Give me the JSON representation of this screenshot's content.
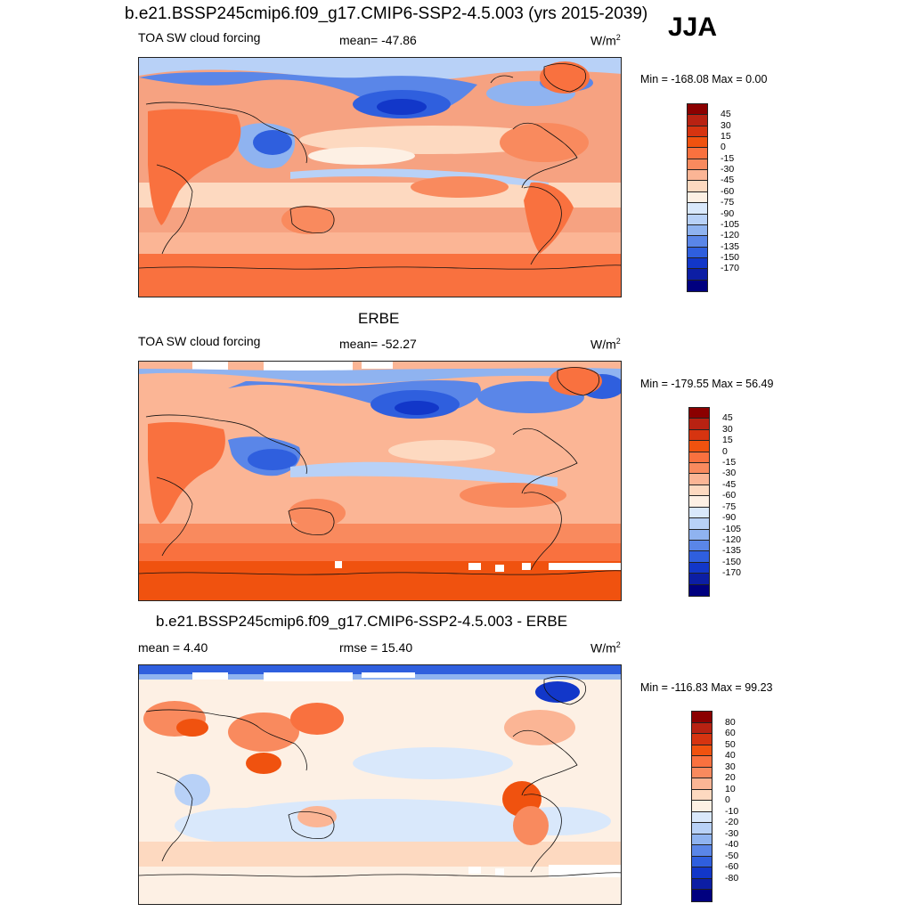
{
  "figure": {
    "main_title": "b.e21.BSSP245cmip6.f09_g17.CMIP6-SSP2-4.5.003 (yrs 2015-2039)",
    "season": "JJA"
  },
  "panels": [
    {
      "id": "model",
      "title": "",
      "left_label": "TOA SW cloud forcing",
      "center_label": "mean= -47.86",
      "units": "W/m",
      "units_sup": "2",
      "minmax": "Min = -168.08 Max =   0.00",
      "colorbar_labels": [
        "45",
        "30",
        "15",
        "0",
        "-15",
        "-30",
        "-45",
        "-60",
        "-75",
        "-90",
        "-105",
        "-120",
        "-135",
        "-150",
        "-170"
      ],
      "colors": [
        "#8b0000",
        "#b82212",
        "#d63410",
        "#f0520f",
        "#f9713f",
        "#f98a5e",
        "#fbb595",
        "#fdd9c0",
        "#fdf0e4",
        "#d9e8fb",
        "#b8d1f7",
        "#8fb3f0",
        "#5a86e8",
        "#2f5fde",
        "#1237c9",
        "#0c1ea4",
        "#00007f"
      ]
    },
    {
      "id": "obs",
      "title": "ERBE",
      "left_label": "TOA SW cloud forcing",
      "center_label": "mean= -52.27",
      "units": "W/m",
      "units_sup": "2",
      "minmax": "Min = -179.55 Max =  56.49",
      "colorbar_labels": [
        "45",
        "30",
        "15",
        "0",
        "-15",
        "-30",
        "-45",
        "-60",
        "-75",
        "-90",
        "-105",
        "-120",
        "-135",
        "-150",
        "-170"
      ],
      "colors": [
        "#8b0000",
        "#b82212",
        "#d63410",
        "#f0520f",
        "#f9713f",
        "#f98a5e",
        "#fbb595",
        "#fdd9c0",
        "#fdf0e4",
        "#d9e8fb",
        "#b8d1f7",
        "#8fb3f0",
        "#5a86e8",
        "#2f5fde",
        "#1237c9",
        "#0c1ea4",
        "#00007f"
      ]
    },
    {
      "id": "diff",
      "title": "b.e21.BSSP245cmip6.f09_g17.CMIP6-SSP2-4.5.003 - ERBE",
      "left_label": "mean =   4.40",
      "center_label": "rmse =  15.40",
      "units": "W/m",
      "units_sup": "2",
      "minmax": "Min = -116.83 Max =  99.23",
      "colorbar_labels": [
        "80",
        "60",
        "50",
        "40",
        "30",
        "20",
        "10",
        "0",
        "-10",
        "-20",
        "-30",
        "-40",
        "-50",
        "-60",
        "-80"
      ],
      "colors": [
        "#8b0000",
        "#b82212",
        "#d63410",
        "#f0520f",
        "#f9713f",
        "#f98a5e",
        "#fbb595",
        "#fdd9c0",
        "#fdf0e4",
        "#d9e8fb",
        "#b8d1f7",
        "#8fb3f0",
        "#5a86e8",
        "#2f5fde",
        "#1237c9",
        "#0c1ea4",
        "#00007f"
      ]
    }
  ]
}
